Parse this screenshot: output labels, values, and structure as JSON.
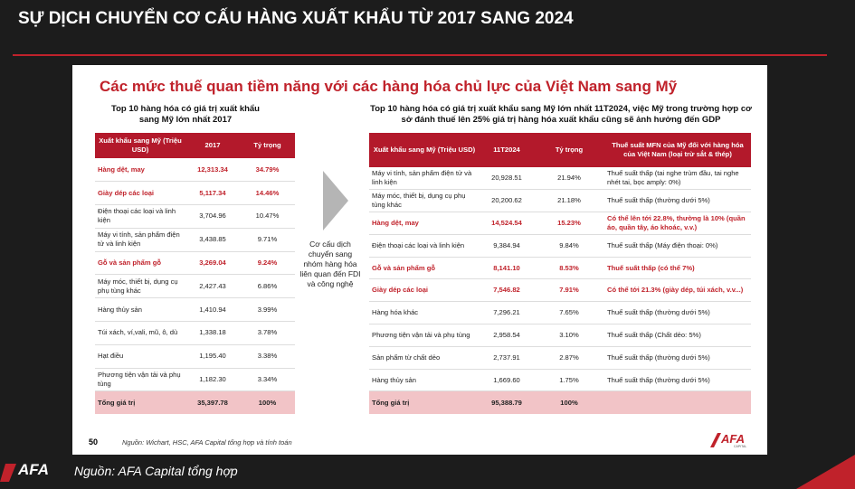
{
  "header": {
    "title": "SỰ DỊCH CHUYỂN CƠ CẤU HÀNG XUẤT KHẨU TỪ 2017 SANG 2024"
  },
  "slide": {
    "title": "Các mức thuế quan tiềm năng với các hàng hóa chủ lực của Việt Nam sang Mỹ",
    "middle_text": "Cơ cấu dịch chuyển sang nhóm hàng hóa liên quan đến FDI và công nghệ",
    "page_number": "50",
    "source": "Nguồn: Wichart, HSC, AFA Capital tổng hợp và tính toán",
    "logo": "AFA",
    "logo_sub": "CAPITAL"
  },
  "left_table": {
    "title": "Top 10 hàng hóa có giá trị xuất khẩu sang Mỹ lớn nhất 2017",
    "columns": [
      "Xuất khẩu sang Mỹ (Triệu USD)",
      "2017",
      "Tỷ trọng"
    ],
    "rows": [
      {
        "cells": [
          "Hàng dệt, may",
          "12,313.34",
          "34.79%"
        ],
        "highlight": true
      },
      {
        "cells": [
          "Giày dép các loại",
          "5,117.34",
          "14.46%"
        ],
        "highlight": true
      },
      {
        "cells": [
          "Điện thoại các loại và linh kiện",
          "3,704.96",
          "10.47%"
        ],
        "highlight": false
      },
      {
        "cells": [
          "Máy vi tính, sản phẩm điện tử và linh kiện",
          "3,438.85",
          "9.71%"
        ],
        "highlight": false
      },
      {
        "cells": [
          "Gỗ và sản phẩm gỗ",
          "3,269.04",
          "9.24%"
        ],
        "highlight": true
      },
      {
        "cells": [
          "Máy móc, thiết bị, dụng cụ phụ tùng khác",
          "2,427.43",
          "6.86%"
        ],
        "highlight": false
      },
      {
        "cells": [
          "Hàng thủy sản",
          "1,410.94",
          "3.99%"
        ],
        "highlight": false
      },
      {
        "cells": [
          "Túi xách, ví,vali, mũ, ô, dù",
          "1,338.18",
          "3.78%"
        ],
        "highlight": false
      },
      {
        "cells": [
          "Hạt điều",
          "1,195.40",
          "3.38%"
        ],
        "highlight": false
      },
      {
        "cells": [
          "Phương tiện vận tải và phụ tùng",
          "1,182.30",
          "3.34%"
        ],
        "highlight": false
      }
    ],
    "total": [
      "Tổng giá trị",
      "35,397.78",
      "100%"
    ]
  },
  "right_table": {
    "title": "Top 10 hàng hóa có giá trị xuất khẩu sang Mỹ lớn nhất 11T2024, việc Mỹ trong trường hợp cơ sở đánh thuế lên 25% giá trị hàng hóa xuất khẩu cũng sẽ ảnh hưởng đến GDP",
    "columns": [
      "Xuất khẩu sang Mỹ (Triệu USD)",
      "11T2024",
      "Tỷ trọng",
      "Thuế suất MFN của Mỹ đối với hàng hóa của Việt Nam (loại trừ sắt & thép)"
    ],
    "rows": [
      {
        "cells": [
          "Máy vi tính, sản phẩm điện tử và linh kiện",
          "20,928.51",
          "21.94%",
          "Thuế suất thấp (tai nghe trùm đầu, tai nghe nhét tai, bọc amply: 0%)"
        ],
        "highlight": false
      },
      {
        "cells": [
          "Máy móc, thiết bị, dụng cụ phụ tùng khác",
          "20,200.62",
          "21.18%",
          "Thuế suất thấp (thường dưới 5%)"
        ],
        "highlight": false
      },
      {
        "cells": [
          "Hàng dệt, may",
          "14,524.54",
          "15.23%",
          "Có thể lên tới 22.8%, thường là 10% (quần áo, quần tây, áo khoác, v.v.)"
        ],
        "highlight": true
      },
      {
        "cells": [
          "Điện thoại các loại và linh kiện",
          "9,384.94",
          "9.84%",
          "Thuế suất thấp (Máy điện thoại: 0%)"
        ],
        "highlight": false
      },
      {
        "cells": [
          "Gỗ và sản phẩm gỗ",
          "8,141.10",
          "8.53%",
          "Thuế suất thấp (có thể 7%)"
        ],
        "highlight": true
      },
      {
        "cells": [
          "Giày dép các loại",
          "7,546.82",
          "7.91%",
          "Có thể tới 21.3% (giày dép, túi xách, v.v...)"
        ],
        "highlight": true
      },
      {
        "cells": [
          "Hàng hóa khác",
          "7,296.21",
          "7.65%",
          "Thuế suất thấp (thường dưới 5%)"
        ],
        "highlight": false
      },
      {
        "cells": [
          "Phương tiện vận tải và phụ tùng",
          "2,958.54",
          "3.10%",
          "Thuế suất thấp (Chất dẻo: 5%)"
        ],
        "highlight": false
      },
      {
        "cells": [
          "Sản phẩm từ chất dẻo",
          "2,737.91",
          "2.87%",
          "Thuế suất thấp (thường dưới 5%)"
        ],
        "highlight": false
      },
      {
        "cells": [
          "Hàng thủy sản",
          "1,669.60",
          "1.75%",
          "Thuế suất thấp (thường dưới 5%)"
        ],
        "highlight": false
      }
    ],
    "total": [
      "Tổng giá trị",
      "95,388.79",
      "100%",
      ""
    ]
  },
  "footer": {
    "source": "Nguồn: AFA Capital tổng hợp",
    "logo": "AFA"
  }
}
